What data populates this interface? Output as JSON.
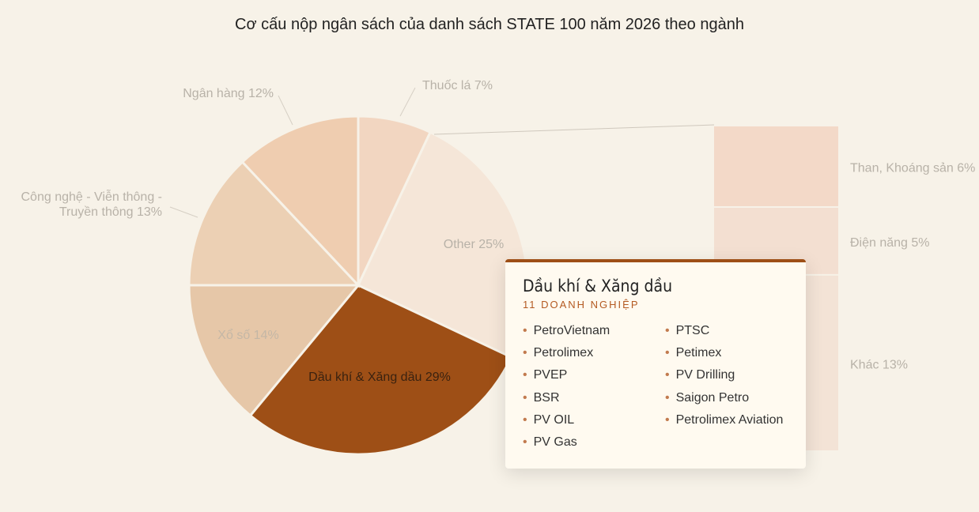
{
  "title": "Cơ cấu nộp ngân sách của danh sách STATE 100 năm 2026 theo ngành",
  "chart_data": {
    "type": "pie",
    "title": "Cơ cấu nộp ngân sách của danh sách STATE 100 năm 2026 theo ngành",
    "slices": [
      {
        "label": "Thuốc lá 7%",
        "value": 7,
        "color": "#f2d6c1"
      },
      {
        "label": "Other 25%",
        "value": 25,
        "color": "#f5e6d8"
      },
      {
        "label": "Dầu khí & Xăng dầu 29%",
        "value": 29,
        "color": "#9e4f16"
      },
      {
        "label": "Xổ số 14%",
        "value": 14,
        "color": "#e6c7a8"
      },
      {
        "label": "Công nghệ - Viễn thông - Truyền thông 13%",
        "value": 13,
        "color": "#ecd0b4"
      },
      {
        "label": "Ngân hàng 12%",
        "value": 12,
        "color": "#efcdb0"
      }
    ],
    "other_breakdown": [
      {
        "label": "Than, Khoáng sản 6%",
        "value": 6,
        "color": "#f3d9c8"
      },
      {
        "label": "Điện năng 5%",
        "value": 5,
        "color": "#f3dfd1"
      },
      {
        "label": "Khác 13%",
        "value": 13,
        "color": "#f3e3d6"
      }
    ]
  },
  "tooltip": {
    "title": "Dầu khí & Xăng dầu",
    "subtitle": "11 DOANH NGHIỆP",
    "companies": [
      "PetroVietnam",
      "Petrolimex",
      "PVEP",
      "BSR",
      "PV OIL",
      "PV Gas",
      "PTSC",
      "Petimex",
      "PV Drilling",
      "Saigon Petro",
      "Petrolimex Aviation"
    ]
  }
}
